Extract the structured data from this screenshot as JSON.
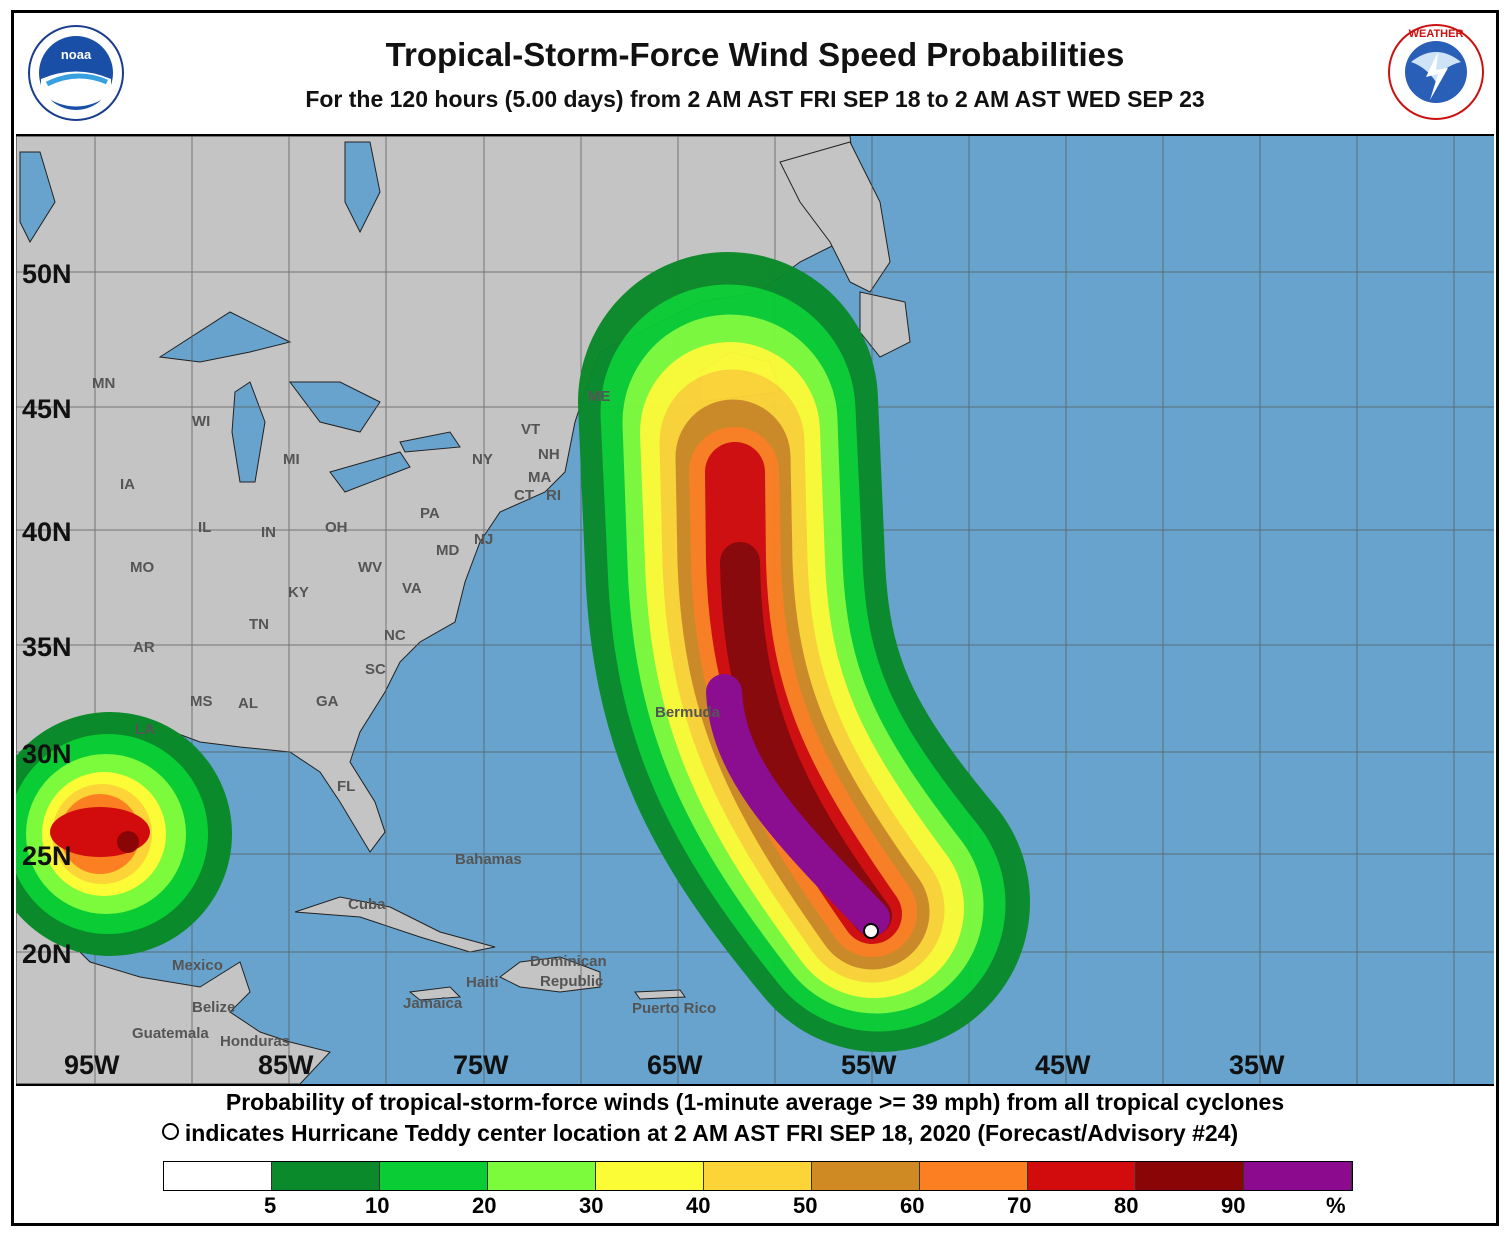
{
  "header": {
    "title": "Tropical-Storm-Force Wind Speed Probabilities",
    "subtitle": "For the 120 hours (5.00 days) from 2 AM AST FRI SEP 18 to 2 AM AST WED SEP 23",
    "left_logo": "NOAA",
    "right_logo": "NATIONAL WEATHER SERVICE"
  },
  "map": {
    "lat_labels": [
      "50N",
      "45N",
      "40N",
      "35N",
      "30N",
      "25N",
      "20N"
    ],
    "lon_labels": [
      "95W",
      "85W",
      "75W",
      "65W",
      "55W",
      "45W",
      "35W"
    ],
    "state_labels": [
      "MN",
      "WI",
      "MI",
      "IA",
      "IL",
      "IN",
      "OH",
      "PA",
      "NY",
      "VT",
      "NH",
      "MA",
      "CT",
      "RI",
      "ME",
      "MO",
      "KY",
      "WV",
      "VA",
      "MD",
      "NJ",
      "TN",
      "NC",
      "AR",
      "SC",
      "MS",
      "AL",
      "GA",
      "LA",
      "FL"
    ],
    "place_labels": [
      "Bermuda",
      "Bahamas",
      "Cuba",
      "Mexico",
      "Belize",
      "Guatemala",
      "Honduras",
      "Jamaica",
      "Haiti",
      "Dominican",
      "Republic",
      "Puerto Rico"
    ],
    "storm_marker_icon": "hollow-circle-icon",
    "colors": {
      "ocean": "#67a3cc",
      "land": "#c4c4c4"
    }
  },
  "footer": {
    "line1": "Probability of tropical-storm-force winds (1-minute average >= 39 mph) from all tropical cyclones",
    "line2": "indicates Hurricane Teddy center location at 2 AM AST FRI SEP 18, 2020 (Forecast/Advisory #24)"
  },
  "legend": {
    "bins": [
      {
        "range": "0-5",
        "color": "#ffffff"
      },
      {
        "range": "5-10",
        "color": "#0a8a2a"
      },
      {
        "range": "10-20",
        "color": "#0acc34"
      },
      {
        "range": "20-30",
        "color": "#7cfa3c"
      },
      {
        "range": "30-40",
        "color": "#fbfb36"
      },
      {
        "range": "40-50",
        "color": "#fcd437"
      },
      {
        "range": "50-60",
        "color": "#cf8a24"
      },
      {
        "range": "60-70",
        "color": "#fc7f21"
      },
      {
        "range": "70-80",
        "color": "#d20c0c"
      },
      {
        "range": "80-90",
        "color": "#8a0606"
      },
      {
        "range": "90-100",
        "color": "#8c0a8e"
      }
    ],
    "ticks": [
      "5",
      "10",
      "20",
      "30",
      "40",
      "50",
      "60",
      "70",
      "80",
      "90"
    ],
    "unit": "%"
  }
}
